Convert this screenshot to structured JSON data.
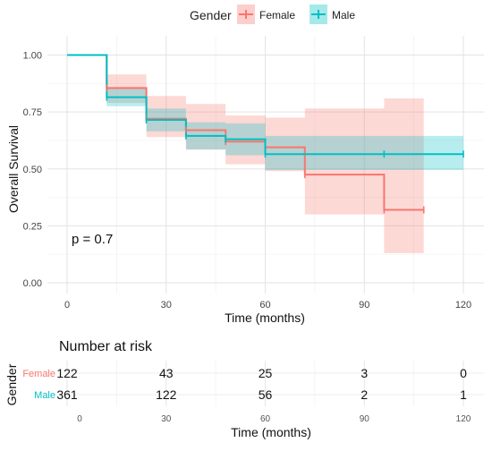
{
  "chart_data": [
    {
      "type": "line",
      "subtype": "kaplan-meier",
      "title": "",
      "xlabel": "Time (months)",
      "ylabel": "Overall Survival",
      "xlim": [
        0,
        120
      ],
      "ylim": [
        0,
        1
      ],
      "x_ticks": [
        "0",
        "30",
        "60",
        "90",
        "120"
      ],
      "y_ticks": [
        "0.00",
        "0.25",
        "0.50",
        "0.75",
        "1.00"
      ],
      "grid": true,
      "legend_title": "Gender",
      "legend_position": "top",
      "annotation": "p = 0.7",
      "series": [
        {
          "name": "Female",
          "color": "#F8766D",
          "steps": [
            [
              0,
              1.0
            ],
            [
              12,
              0.855
            ],
            [
              24,
              0.72
            ],
            [
              36,
              0.67
            ],
            [
              48,
              0.62
            ],
            [
              60,
              0.595
            ],
            [
              72,
              0.475
            ],
            [
              96,
              0.32
            ],
            [
              108,
              0.32
            ]
          ],
          "ci_lower": [
            [
              0,
              1.0
            ],
            [
              12,
              0.79
            ],
            [
              24,
              0.64
            ],
            [
              36,
              0.585
            ],
            [
              48,
              0.52
            ],
            [
              60,
              0.49
            ],
            [
              72,
              0.3
            ],
            [
              96,
              0.13
            ],
            [
              108,
              0.13
            ]
          ],
          "ci_upper": [
            [
              0,
              1.0
            ],
            [
              12,
              0.915
            ],
            [
              24,
              0.82
            ],
            [
              36,
              0.785
            ],
            [
              48,
              0.735
            ],
            [
              60,
              0.725
            ],
            [
              72,
              0.765
            ],
            [
              96,
              0.81
            ],
            [
              108,
              0.81
            ]
          ],
          "censor_times": [
            12,
            24,
            36,
            48,
            72,
            96,
            108
          ]
        },
        {
          "name": "Male",
          "color": "#00BFC4",
          "steps": [
            [
              0,
              1.0
            ],
            [
              12,
              0.815
            ],
            [
              24,
              0.715
            ],
            [
              36,
              0.645
            ],
            [
              48,
              0.63
            ],
            [
              60,
              0.565
            ],
            [
              120,
              0.565
            ]
          ],
          "ci_lower": [
            [
              0,
              1.0
            ],
            [
              12,
              0.775
            ],
            [
              24,
              0.665
            ],
            [
              36,
              0.585
            ],
            [
              48,
              0.56
            ],
            [
              60,
              0.495
            ],
            [
              120,
              0.495
            ]
          ],
          "ci_upper": [
            [
              0,
              1.0
            ],
            [
              12,
              0.855
            ],
            [
              24,
              0.765
            ],
            [
              36,
              0.705
            ],
            [
              48,
              0.7
            ],
            [
              60,
              0.645
            ],
            [
              120,
              0.645
            ]
          ],
          "censor_times": [
            12,
            24,
            36,
            48,
            60,
            96,
            120
          ]
        }
      ]
    },
    {
      "type": "table",
      "title": "Number at risk",
      "xlabel": "Time (months)",
      "ylabel": "Gender",
      "x": [
        0,
        30,
        60,
        90,
        120
      ],
      "x_ticks": [
        "0",
        "30",
        "60",
        "90",
        "120"
      ],
      "series": [
        {
          "name": "Female",
          "color": "#F8766D",
          "values": [
            "122",
            "43",
            "25",
            "3",
            "0"
          ]
        },
        {
          "name": "Male",
          "color": "#00BFC4",
          "values": [
            "361",
            "122",
            "56",
            "2",
            "1"
          ]
        }
      ]
    }
  ]
}
